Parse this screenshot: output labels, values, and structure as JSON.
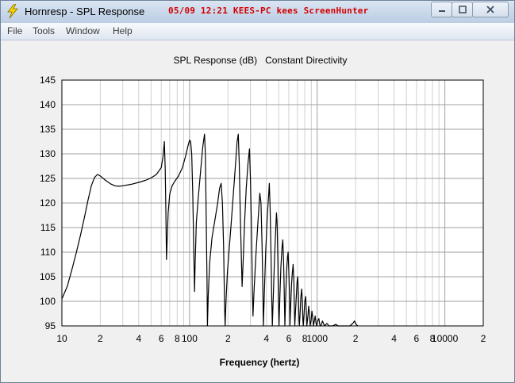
{
  "window": {
    "title": "Hornresp - SPL Response",
    "stamp": "05/09 12:21 KEES-PC kees ScreenHunter"
  },
  "menu": [
    "File",
    "Tools",
    "Window",
    "Help"
  ],
  "chart_data": {
    "type": "line",
    "title": "SPL Response (dB)   Constant Directivity",
    "xlabel": "Frequency (hertz)",
    "ylabel": "",
    "x_scale": "log",
    "xlim": [
      10,
      20000
    ],
    "ylim": [
      95,
      145
    ],
    "y_ticks": [
      95,
      100,
      105,
      110,
      115,
      120,
      125,
      130,
      135,
      140,
      145
    ],
    "x_tick_labels": [
      {
        "x": 10,
        "label": "10"
      },
      {
        "x": 20,
        "label": "2"
      },
      {
        "x": 40,
        "label": "4"
      },
      {
        "x": 60,
        "label": "6"
      },
      {
        "x": 80,
        "label": "8"
      },
      {
        "x": 100,
        "label": "100"
      },
      {
        "x": 200,
        "label": "2"
      },
      {
        "x": 400,
        "label": "4"
      },
      {
        "x": 600,
        "label": "6"
      },
      {
        "x": 800,
        "label": "8"
      },
      {
        "x": 1000,
        "label": "1000"
      },
      {
        "x": 2000,
        "label": "2"
      },
      {
        "x": 4000,
        "label": "4"
      },
      {
        "x": 6000,
        "label": "6"
      },
      {
        "x": 8000,
        "label": "8"
      },
      {
        "x": 10000,
        "label": "10000"
      },
      {
        "x": 20000,
        "label": "2"
      }
    ],
    "grid": true,
    "series": [
      {
        "color": "#000000",
        "points": [
          [
            10,
            100.5
          ],
          [
            11,
            103
          ],
          [
            12,
            106.5
          ],
          [
            13,
            110
          ],
          [
            14,
            113.5
          ],
          [
            15,
            117
          ],
          [
            16,
            120.5
          ],
          [
            17,
            123.5
          ],
          [
            18,
            125.2
          ],
          [
            19,
            125.8
          ],
          [
            20,
            125.5
          ],
          [
            22,
            124.6
          ],
          [
            24,
            123.9
          ],
          [
            26,
            123.5
          ],
          [
            28,
            123.4
          ],
          [
            30,
            123.5
          ],
          [
            35,
            123.8
          ],
          [
            40,
            124.2
          ],
          [
            45,
            124.6
          ],
          [
            50,
            125.1
          ],
          [
            55,
            125.8
          ],
          [
            60,
            127.2
          ],
          [
            62,
            129.5
          ],
          [
            63.5,
            132.5
          ],
          [
            64.5,
            127
          ],
          [
            65.2,
            118.5
          ],
          [
            66,
            108.5
          ],
          [
            67,
            113.5
          ],
          [
            68,
            118
          ],
          [
            70,
            121.8
          ],
          [
            73,
            123.5
          ],
          [
            77,
            124.5
          ],
          [
            82,
            125.5
          ],
          [
            88,
            127.2
          ],
          [
            93,
            129.5
          ],
          [
            97,
            131.5
          ],
          [
            100,
            132.8
          ],
          [
            102,
            132.5
          ],
          [
            104,
            130
          ],
          [
            106,
            122
          ],
          [
            108,
            110
          ],
          [
            109.5,
            102
          ],
          [
            110.5,
            107
          ],
          [
            113,
            116
          ],
          [
            117,
            121
          ],
          [
            122,
            126.5
          ],
          [
            127,
            131.5
          ],
          [
            131,
            134
          ],
          [
            133,
            130
          ],
          [
            135,
            118
          ],
          [
            137,
            104
          ],
          [
            138,
            95
          ],
          [
            140,
            101
          ],
          [
            144,
            108
          ],
          [
            150,
            113
          ],
          [
            158,
            116.5
          ],
          [
            166,
            120
          ],
          [
            172,
            123
          ],
          [
            177,
            124
          ],
          [
            181,
            120
          ],
          [
            185,
            111
          ],
          [
            188,
            99
          ],
          [
            190,
            95
          ],
          [
            193,
            100
          ],
          [
            198,
            106
          ],
          [
            205,
            111
          ],
          [
            212,
            116
          ],
          [
            220,
            121.5
          ],
          [
            228,
            127
          ],
          [
            236,
            132.5
          ],
          [
            241,
            134
          ],
          [
            245,
            128
          ],
          [
            250,
            117
          ],
          [
            255,
            108
          ],
          [
            258,
            103
          ],
          [
            263,
            108
          ],
          [
            270,
            116
          ],
          [
            278,
            123
          ],
          [
            287,
            128
          ],
          [
            295,
            131
          ],
          [
            300,
            125
          ],
          [
            306,
            114
          ],
          [
            311,
            102
          ],
          [
            314,
            97
          ],
          [
            320,
            102
          ],
          [
            332,
            110
          ],
          [
            345,
            117
          ],
          [
            355,
            122
          ],
          [
            363,
            120
          ],
          [
            370,
            111
          ],
          [
            376,
            101
          ],
          [
            379,
            95
          ],
          [
            385,
            101
          ],
          [
            395,
            110
          ],
          [
            407,
            117.5
          ],
          [
            415,
            121
          ],
          [
            422,
            124
          ],
          [
            428,
            119
          ],
          [
            435,
            109
          ],
          [
            440,
            101
          ],
          [
            445,
            95
          ],
          [
            452,
            100
          ],
          [
            462,
            108
          ],
          [
            472,
            114
          ],
          [
            480,
            118
          ],
          [
            485,
            116
          ],
          [
            492,
            108
          ],
          [
            497,
            100
          ],
          [
            502,
            95
          ],
          [
            510,
            101
          ],
          [
            520,
            107
          ],
          [
            530,
            111
          ],
          [
            538,
            112.5
          ],
          [
            546,
            108
          ],
          [
            553,
            101
          ],
          [
            558,
            95
          ],
          [
            565,
            100
          ],
          [
            575,
            106
          ],
          [
            585,
            109
          ],
          [
            592,
            110
          ],
          [
            600,
            106
          ],
          [
            608,
            100
          ],
          [
            612,
            95
          ],
          [
            620,
            99
          ],
          [
            630,
            103.5
          ],
          [
            640,
            106
          ],
          [
            648,
            107.5
          ],
          [
            656,
            104
          ],
          [
            663,
            98
          ],
          [
            668,
            95
          ],
          [
            676,
            98
          ],
          [
            686,
            101
          ],
          [
            696,
            104
          ],
          [
            704,
            105
          ],
          [
            713,
            101
          ],
          [
            720,
            96
          ],
          [
            725,
            95
          ],
          [
            733,
            97
          ],
          [
            745,
            101
          ],
          [
            756,
            102.5
          ],
          [
            765,
            100
          ],
          [
            773,
            96
          ],
          [
            778,
            95
          ],
          [
            787,
            97
          ],
          [
            800,
            100
          ],
          [
            812,
            101
          ],
          [
            822,
            98
          ],
          [
            830,
            95
          ],
          [
            845,
            97
          ],
          [
            858,
            99
          ],
          [
            870,
            97.5
          ],
          [
            880,
            95
          ],
          [
            895,
            96
          ],
          [
            910,
            98
          ],
          [
            925,
            96.5
          ],
          [
            935,
            95
          ],
          [
            950,
            96
          ],
          [
            965,
            97
          ],
          [
            980,
            95.5
          ],
          [
            992,
            95
          ],
          [
            1010,
            96
          ],
          [
            1030,
            96.5
          ],
          [
            1050,
            95.2
          ],
          [
            1070,
            95
          ],
          [
            1100,
            96
          ],
          [
            1120,
            95.5
          ],
          [
            1140,
            95
          ],
          [
            1190,
            95.5
          ],
          [
            1240,
            95
          ],
          [
            1320,
            95
          ],
          [
            1400,
            95.3
          ],
          [
            1460,
            95
          ],
          [
            1600,
            95
          ],
          [
            1800,
            95
          ],
          [
            1900,
            95.5
          ],
          [
            1960,
            96
          ],
          [
            2020,
            95.3
          ],
          [
            2080,
            95
          ]
        ]
      }
    ]
  }
}
